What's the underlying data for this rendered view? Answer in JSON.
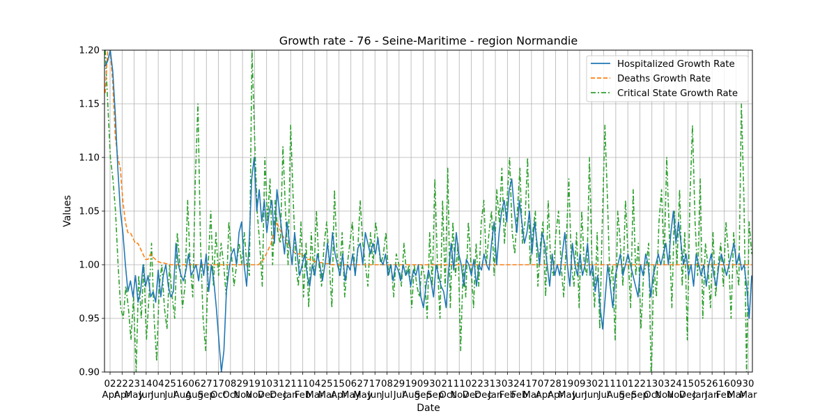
{
  "chart_data": {
    "type": "line",
    "title": "Growth rate - 76 - Seine-Maritime - region Normandie",
    "xlabel": "Date",
    "ylabel": "Values",
    "ylim": [
      0.9,
      1.2
    ],
    "y_ticks": [
      "0.90",
      "0.95",
      "1.00",
      "1.05",
      "1.10",
      "1.15",
      "1.20"
    ],
    "grid": true,
    "legend_position": "top-right",
    "x_tick_labels": [
      {
        "day": "02",
        "month": "Apr"
      },
      {
        "day": "22",
        "month": "Apr"
      },
      {
        "day": "23",
        "month": "May"
      },
      {
        "day": "14",
        "month": "Jun"
      },
      {
        "day": "04",
        "month": "Jun"
      },
      {
        "day": "25",
        "month": "Jul"
      },
      {
        "day": "16",
        "month": "Aug"
      },
      {
        "day": "06",
        "month": "Aug"
      },
      {
        "day": "27",
        "month": "Sep"
      },
      {
        "day": "17",
        "month": "Oct"
      },
      {
        "day": "08",
        "month": "Oct"
      },
      {
        "day": "29",
        "month": "Nov"
      },
      {
        "day": "19",
        "month": "Nov"
      },
      {
        "day": "10",
        "month": "Dec"
      },
      {
        "day": "31",
        "month": "Dec"
      },
      {
        "day": "21",
        "month": "Jan"
      },
      {
        "day": "11",
        "month": "Feb"
      },
      {
        "day": "04",
        "month": "Mar"
      },
      {
        "day": "25",
        "month": "Mar"
      },
      {
        "day": "15",
        "month": "Apr"
      },
      {
        "day": "06",
        "month": "May"
      },
      {
        "day": "27",
        "month": "May"
      },
      {
        "day": "17",
        "month": "Jun"
      },
      {
        "day": "08",
        "month": "Jul"
      },
      {
        "day": "29",
        "month": "Jul"
      },
      {
        "day": "19",
        "month": "Aug"
      },
      {
        "day": "09",
        "month": "Sep"
      },
      {
        "day": "30",
        "month": "Sep"
      },
      {
        "day": "21",
        "month": "Oct"
      },
      {
        "day": "11",
        "month": "Nov"
      },
      {
        "day": "02",
        "month": "Dec"
      },
      {
        "day": "23",
        "month": "Dec"
      },
      {
        "day": "13",
        "month": "Jan"
      },
      {
        "day": "03",
        "month": "Feb"
      },
      {
        "day": "24",
        "month": "Feb"
      },
      {
        "day": "17",
        "month": "Mar"
      },
      {
        "day": "07",
        "month": "Apr"
      },
      {
        "day": "28",
        "month": "Apr"
      },
      {
        "day": "19",
        "month": "May"
      },
      {
        "day": "09",
        "month": "Jun"
      },
      {
        "day": "30",
        "month": "Jun"
      },
      {
        "day": "21",
        "month": "Jul"
      },
      {
        "day": "11",
        "month": "Aug"
      },
      {
        "day": "01",
        "month": "Sep"
      },
      {
        "day": "22",
        "month": "Sep"
      },
      {
        "day": "13",
        "month": "Oct"
      },
      {
        "day": "03",
        "month": "Nov"
      },
      {
        "day": "24",
        "month": "Nov"
      },
      {
        "day": "15",
        "month": "Dec"
      },
      {
        "day": "05",
        "month": "Jan"
      },
      {
        "day": "26",
        "month": "Jan"
      },
      {
        "day": "16",
        "month": "Feb"
      },
      {
        "day": "09",
        "month": "Mar"
      },
      {
        "day": "30",
        "month": "Mar"
      }
    ],
    "series": [
      {
        "name": "Hospitalized Growth Rate",
        "color": "#1f77b4",
        "style": "solid",
        "values": [
          1.185,
          1.19,
          1.2,
          1.18,
          1.14,
          1.09,
          1.05,
          1.03,
          1.0,
          0.975,
          0.985,
          0.97,
          0.99,
          0.965,
          0.975,
          1.0,
          0.98,
          0.99,
          0.97,
          0.975,
          0.965,
          0.995,
          0.97,
          0.99,
          1.0,
          0.98,
          0.97,
          0.975,
          1.02,
          1.0,
          0.99,
          0.985,
          0.995,
          1.01,
          0.99,
          0.995,
          1.0,
          0.985,
          1.005,
          0.99,
          1.01,
          0.975,
          1.0,
          0.985,
          0.96,
          0.93,
          0.9,
          0.92,
          0.975,
          0.995,
          1.01,
          1.015,
          1.0,
          1.03,
          1.04,
          1.0,
          0.98,
          1.02,
          1.08,
          1.1,
          1.05,
          1.07,
          1.04,
          1.06,
          1.03,
          1.05,
          1.06,
          1.02,
          1.07,
          1.05,
          1.03,
          1.01,
          1.04,
          1.02,
          1.0,
          1.03,
          1.01,
          0.99,
          1.0,
          1.01,
          0.99,
          0.98,
          1.0,
          0.99,
          1.01,
          1.0,
          0.985,
          1.0,
          1.02,
          1.0,
          1.03,
          1.01,
          1.0,
          0.99,
          1.01,
          0.985,
          1.0,
          0.995,
          1.01,
          0.99,
          1.015,
          1.02,
          1.0,
          1.03,
          1.02,
          1.01,
          1.02,
          1.01,
          1.025,
          1.005,
          1.0,
          1.01,
          0.99,
          1.0,
          0.985,
          1.0,
          0.995,
          0.985,
          1.0,
          0.99,
          0.995,
          0.98,
          0.995,
          0.99,
          1.0,
          0.97,
          0.96,
          0.98,
          0.995,
          0.985,
          0.97,
          1.0,
          0.99,
          0.98,
          0.975,
          0.96,
          0.995,
          1.02,
          0.995,
          1.03,
          1.01,
          1.0,
          0.98,
          1.005,
          1.0,
          0.99,
          1.005,
          0.98,
          1.0,
          0.995,
          1.01,
          1.0,
          0.995,
          1.02,
          1.04,
          1.0,
          1.03,
          1.05,
          1.06,
          1.04,
          1.07,
          1.08,
          1.05,
          1.03,
          1.06,
          1.04,
          1.02,
          1.03,
          1.05,
          1.01,
          1.04,
          1.02,
          1.0,
          1.03,
          1.02,
          1.0,
          0.98,
          1.01,
          0.99,
          1.0,
          0.99,
          1.01,
          1.03,
          1.0,
          0.98,
          1.02,
          1.0,
          0.99,
          1.01,
          0.99,
          1.0,
          1.02,
          0.99,
          1.0,
          0.975,
          0.99,
          0.96,
          0.94,
          0.97,
          1.0,
          0.98,
          0.96,
          0.99,
          1.0,
          1.01,
          0.99,
          1.0,
          1.01,
          1.0,
          0.99,
          0.98,
          0.97,
          1.0,
          0.99,
          1.01,
          1.0,
          0.97,
          0.99,
          1.0,
          1.01,
          1.0,
          1.01,
          1.02,
          1.0,
          1.03,
          1.05,
          1.02,
          1.04,
          1.02,
          1.0,
          1.01,
          0.99,
          1.0,
          0.98,
          1.01,
          1.0,
          0.99,
          1.0,
          0.98,
          1.0,
          1.01,
          0.99,
          0.98,
          1.0,
          1.01,
          1.0,
          0.99,
          1.0,
          1.01,
          1.02,
          1.0,
          1.01,
          0.995,
          1.0,
          0.98,
          0.95,
          0.99
        ]
      },
      {
        "name": "Deaths Growth Rate",
        "color": "#ff7f0e",
        "style": "dashed",
        "values": [
          1.16,
          1.2,
          1.2,
          1.17,
          1.12,
          1.1,
          1.09,
          1.06,
          1.04,
          1.03,
          1.03,
          1.025,
          1.02,
          1.02,
          1.015,
          1.01,
          1.005,
          1.005,
          1.01,
          1.007,
          1.005,
          1.003,
          1.002,
          1.002,
          1.001,
          1.001,
          1.0,
          1.0,
          1.0,
          1.0,
          1.0,
          1.0,
          1.0,
          1.0,
          1.0,
          1.0,
          1.0,
          1.0,
          1.0,
          1.0,
          1.0,
          1.0,
          1.0,
          1.0,
          1.0,
          1.0,
          1.0,
          1.0,
          1.0,
          1.0,
          1.0,
          1.0,
          1.0,
          1.0,
          1.0,
          1.0,
          1.0,
          1.0,
          1.0,
          1.0,
          1.0,
          1.0,
          1.003,
          1.005,
          1.01,
          1.015,
          1.02,
          1.03,
          1.04,
          1.035,
          1.03,
          1.025,
          1.02,
          1.018,
          1.015,
          1.012,
          1.01,
          1.01,
          1.01,
          1.008,
          1.005,
          1.005,
          1.005,
          1.003,
          1.003,
          1.002,
          1.002,
          1.001,
          1.001,
          1.001,
          1.0,
          1.0,
          1.0,
          1.0,
          1.0,
          1.0,
          1.0,
          1.0,
          1.0,
          1.0,
          1.0,
          1.0,
          1.0,
          1.0,
          1.0,
          1.0,
          1.0,
          1.0,
          1.0,
          1.0,
          1.0,
          1.0,
          1.0,
          1.0,
          1.0,
          1.0,
          1.0,
          1.0,
          1.0,
          1.0,
          1.0,
          1.0,
          1.0,
          1.0,
          1.0,
          1.0,
          1.0,
          1.0,
          1.0,
          1.0,
          1.0,
          1.0,
          1.0,
          1.0,
          1.0,
          1.0,
          1.0,
          1.0,
          1.0,
          1.0,
          1.0,
          1.0,
          1.0,
          1.0,
          1.0,
          1.0,
          1.0,
          1.0,
          1.0,
          1.0,
          1.0,
          1.0,
          1.0,
          1.0,
          1.0,
          1.0,
          1.0,
          1.0,
          1.0,
          1.0,
          1.0,
          1.0,
          1.0,
          1.0,
          1.0,
          1.0,
          1.0,
          1.0,
          1.0,
          1.0,
          1.0,
          1.0,
          1.0,
          1.0,
          1.0,
          1.0,
          1.0,
          1.0,
          1.0,
          1.0,
          1.0,
          1.0,
          1.0,
          1.0,
          1.0,
          1.0,
          1.0,
          1.0,
          1.0,
          1.0,
          1.0,
          1.0,
          1.0,
          1.0,
          1.0,
          1.0,
          1.0,
          1.0,
          1.0,
          1.0,
          1.0,
          1.0,
          1.0,
          1.0,
          1.0,
          1.0,
          1.0,
          1.0,
          1.0,
          1.0,
          1.0,
          1.0,
          1.0,
          1.0,
          1.0,
          1.0,
          1.0,
          1.0,
          1.0,
          1.0,
          1.0,
          1.0,
          1.0,
          1.0,
          1.0,
          1.0,
          1.0,
          1.0,
          1.0,
          1.0,
          1.0,
          1.0,
          1.0,
          1.0,
          1.0,
          1.0,
          1.0,
          1.0,
          1.0,
          1.0,
          1.0,
          1.0,
          1.0,
          1.0,
          1.0,
          1.0,
          1.0,
          1.0,
          1.0,
          1.0,
          1.0,
          1.0,
          1.0,
          1.0,
          1.0,
          1.0,
          1.0,
          1.0
        ]
      },
      {
        "name": "Critical State Growth Rate",
        "color": "#2ca02c",
        "style": "dashdot",
        "values": [
          1.2,
          1.15,
          1.1,
          1.08,
          1.05,
          1.0,
          0.96,
          0.95,
          0.98,
          0.96,
          0.93,
          0.97,
          0.9,
          0.99,
          0.95,
          1.0,
          0.93,
          0.97,
          1.02,
          0.95,
          0.91,
          0.98,
          1.0,
          0.96,
          0.94,
          1.0,
          0.97,
          0.95,
          1.03,
          1.0,
          0.96,
          0.98,
          1.06,
          1.0,
          0.97,
          1.08,
          1.15,
          1.02,
          0.95,
          0.92,
          1.0,
          1.05,
          0.98,
          1.03,
          0.99,
          1.02,
          1.0,
          0.97,
          1.04,
          1.01,
          0.98,
          1.0,
          1.02,
          1.0,
          1.03,
          1.0,
          0.99,
          1.2,
          1.12,
          1.05,
          1.02,
          0.98,
          1.1,
          1.04,
          1.08,
          1.0,
          1.06,
          1.03,
          1.02,
          1.11,
          1.05,
          1.0,
          1.13,
          1.06,
          1.0,
          0.98,
          1.04,
          0.97,
          1.02,
          0.96,
          1.03,
          0.99,
          1.05,
          1.0,
          0.98,
          1.02,
          1.04,
          1.0,
          0.96,
          1.07,
          1.01,
          0.99,
          1.03,
          0.97,
          1.0,
          1.02,
          1.04,
          0.99,
          1.01,
          1.06,
          1.02,
          1.0,
          0.98,
          1.03,
          1.0,
          1.04,
          1.02,
          1.0,
          1.01,
          1.03,
          0.99,
          1.0,
          0.97,
          1.01,
          1.0,
          0.98,
          1.02,
          0.99,
          1.0,
          0.96,
          1.0,
          0.98,
          0.97,
          1.0,
          0.99,
          0.95,
          1.03,
          0.98,
          1.08,
          1.0,
          0.95,
          1.06,
          0.98,
          1.09,
          0.96,
          1.04,
          0.99,
          1.02,
          0.92,
          1.0,
          0.97,
          1.04,
          1.0,
          0.96,
          1.02,
          0.98,
          1.04,
          1.06,
          1.0,
          1.03,
          1.05,
          0.99,
          1.07,
          1.04,
          1.09,
          1.02,
          1.06,
          1.1,
          1.03,
          1.01,
          1.05,
          1.09,
          1.02,
          1.04,
          1.1,
          1.0,
          1.03,
          1.05,
          0.98,
          1.02,
          1.04,
          0.97,
          1.06,
          1.0,
          0.99,
          1.03,
          1.05,
          1.0,
          0.97,
          1.02,
          1.08,
          1.0,
          0.98,
          1.03,
          0.96,
          1.05,
          1.0,
          0.99,
          1.1,
          1.0,
          0.96,
          1.03,
          0.94,
          1.04,
          1.13,
          1.06,
          0.98,
          1.0,
          0.93,
          1.05,
          1.02,
          0.98,
          1.06,
          1.01,
          0.96,
          1.07,
          0.99,
          1.02,
          0.94,
          0.99,
          1.0,
          1.02,
          0.89,
          1.0,
          0.97,
          1.04,
          1.07,
          1.0,
          1.1,
          1.03,
          0.96,
          1.05,
          1.0,
          1.07,
          0.98,
          1.03,
          0.93,
          1.06,
          1.13,
          1.04,
          0.99,
          1.08,
          0.95,
          1.02,
          1.0,
          0.96,
          1.03,
          0.97,
          1.0,
          1.02,
          0.98,
          1.04,
          1.01,
          0.95,
          1.03,
          1.0,
          0.98,
          1.15,
          1.06,
          0.9,
          1.04,
          1.01
        ]
      }
    ]
  }
}
